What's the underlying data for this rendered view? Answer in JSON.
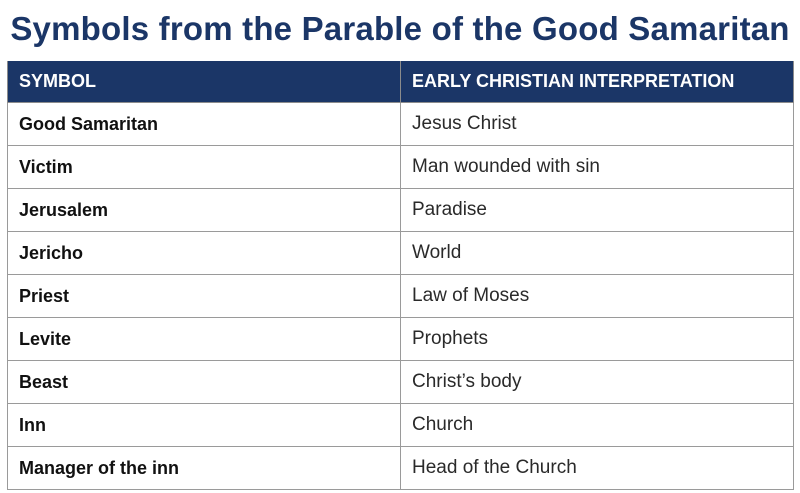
{
  "title": "Symbols from the Parable of the Good Samaritan",
  "table": {
    "headers": [
      "SYMBOL",
      "EARLY CHRISTIAN INTERPRETATION"
    ],
    "rows": [
      {
        "symbol": "Good Samaritan",
        "interpretation": "Jesus Christ"
      },
      {
        "symbol": "Victim",
        "interpretation": "Man wounded with sin"
      },
      {
        "symbol": "Jerusalem",
        "interpretation": "Paradise"
      },
      {
        "symbol": "Jericho",
        "interpretation": "World"
      },
      {
        "symbol": "Priest",
        "interpretation": "Law of Moses"
      },
      {
        "symbol": "Levite",
        "interpretation": "Prophets"
      },
      {
        "symbol": "Beast",
        "interpretation": "Christ’s body"
      },
      {
        "symbol": "Inn",
        "interpretation": "Church"
      },
      {
        "symbol": "Manager of the inn",
        "interpretation": "Head of the Church"
      }
    ]
  },
  "colors": {
    "title": "#1b3667",
    "header_background": "#1b3667",
    "header_text": "#ffffff",
    "grid": "#9a9a9a"
  }
}
